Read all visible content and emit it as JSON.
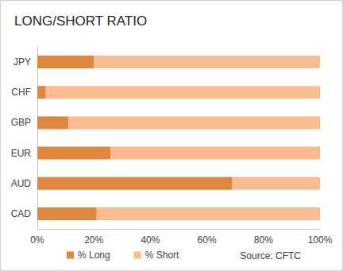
{
  "chart_data": {
    "type": "bar",
    "title": "LONG/SHORT RATIO",
    "orientation": "horizontal",
    "stacked": true,
    "categories": [
      "JPY",
      "CHF",
      "GBP",
      "EUR",
      "AUD",
      "CAD"
    ],
    "series": [
      {
        "name": "% Long",
        "color": "#e0873f",
        "values": [
          20,
          3,
          11,
          26,
          69,
          21
        ]
      },
      {
        "name": "% Short",
        "color": "#f9bc91",
        "values": [
          80,
          97,
          89,
          74,
          31,
          79
        ]
      }
    ],
    "xlim": [
      0,
      100
    ],
    "xticks": [
      {
        "value": 0,
        "label": "0%"
      },
      {
        "value": 20,
        "label": "20%"
      },
      {
        "value": 40,
        "label": "40%"
      },
      {
        "value": 60,
        "label": "60%"
      },
      {
        "value": 80,
        "label": "80%"
      },
      {
        "value": 100,
        "label": "100%"
      }
    ],
    "grid": false,
    "legend": "bottom",
    "annotations": [
      "Source: CFTC"
    ]
  }
}
